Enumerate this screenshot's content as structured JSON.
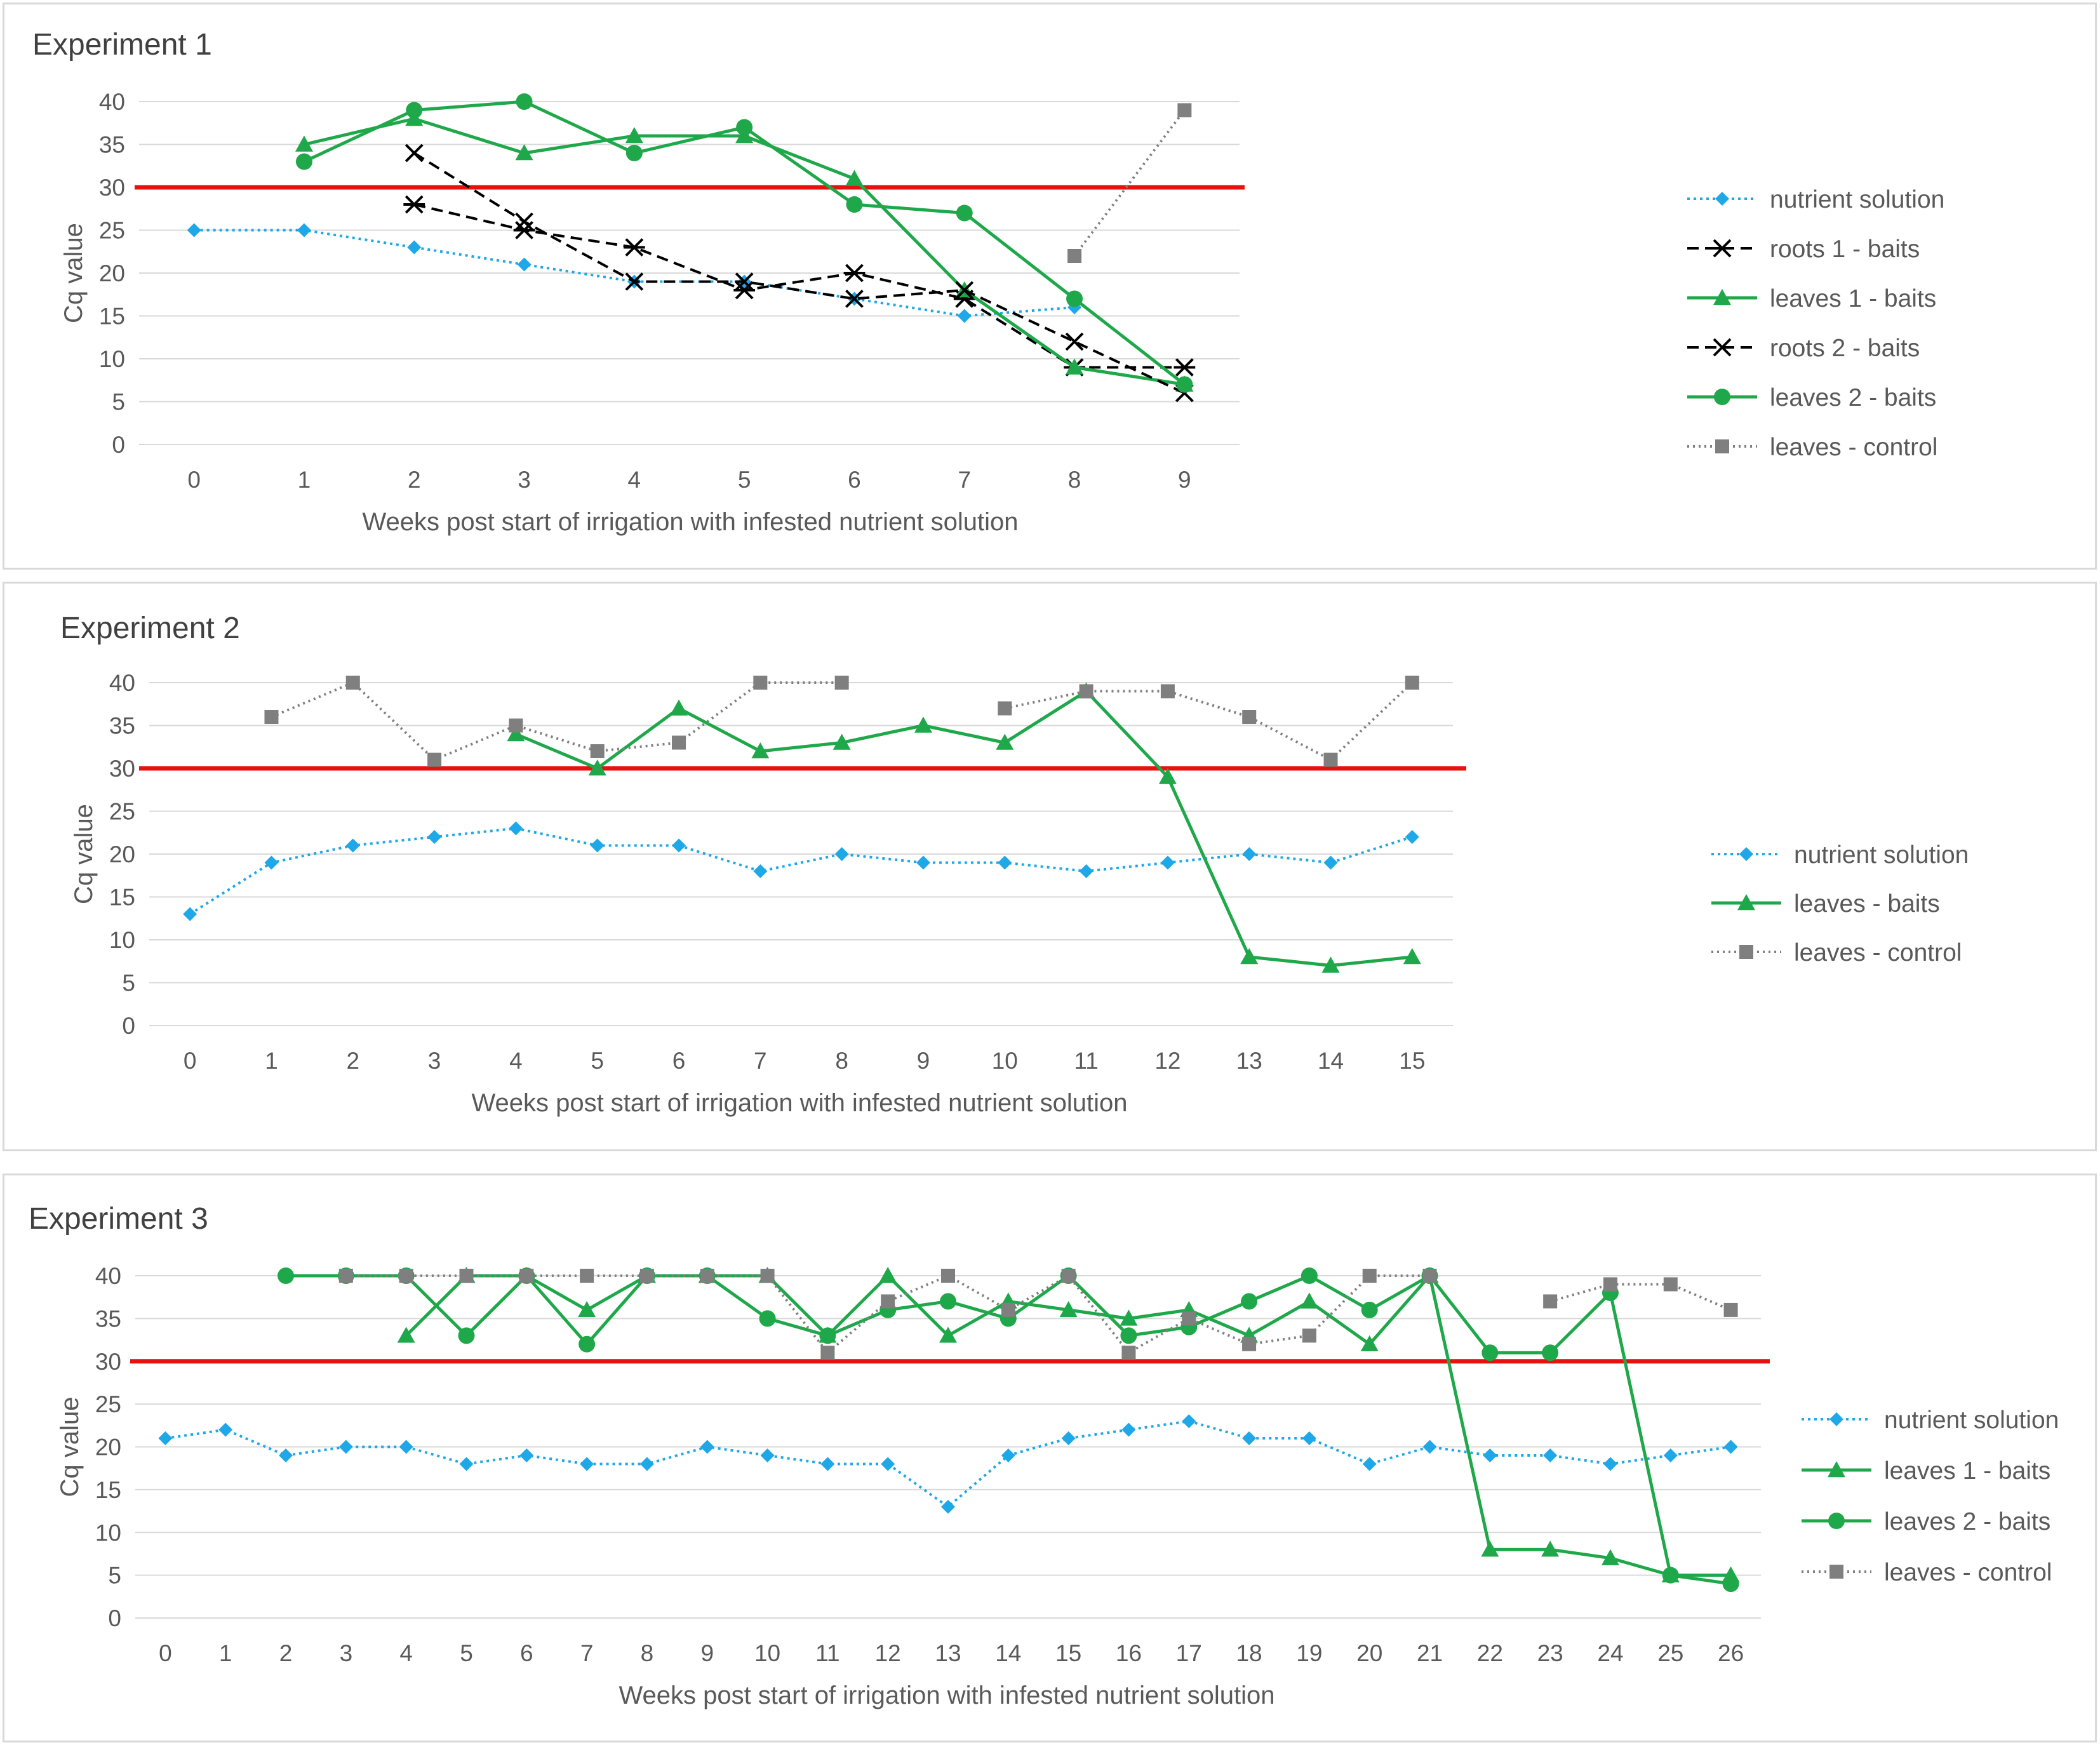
{
  "chart_data": [
    {
      "type": "line",
      "title": "Experiment 1",
      "xlabel": "Weeks post start of irrigation with infested nutrient solution",
      "ylabel": "Cq value",
      "ylim": [
        0,
        40
      ],
      "yticks": [
        0,
        5,
        10,
        15,
        20,
        25,
        30,
        35,
        40
      ],
      "x": [
        0,
        1,
        2,
        3,
        4,
        5,
        6,
        7,
        8,
        9
      ],
      "threshold": 30,
      "grid": true,
      "legend_position": "right",
      "series": [
        {
          "name": "nutrient solution",
          "style": "nutrient",
          "values": [
            25,
            25,
            23,
            21,
            19,
            19,
            17,
            15,
            16,
            null
          ]
        },
        {
          "name": "roots 1 - baits",
          "style": "rootsStar",
          "values": [
            null,
            null,
            28,
            25,
            23,
            18,
            20,
            17,
            9,
            9
          ]
        },
        {
          "name": "leaves 1 - baits",
          "style": "leavesTri",
          "values": [
            null,
            35,
            38,
            34,
            36,
            36,
            31,
            18,
            9,
            7
          ]
        },
        {
          "name": "roots 2 - baits",
          "style": "rootsX",
          "values": [
            null,
            null,
            34,
            26,
            19,
            19,
            17,
            18,
            12,
            6
          ]
        },
        {
          "name": "leaves 2  - baits",
          "style": "leavesCirc",
          "values": [
            null,
            33,
            39,
            40,
            34,
            37,
            28,
            27,
            17,
            7
          ]
        },
        {
          "name": "leaves - control",
          "style": "control",
          "values": [
            null,
            null,
            null,
            null,
            null,
            null,
            null,
            null,
            22,
            39
          ]
        }
      ]
    },
    {
      "type": "line",
      "title": "Experiment 2",
      "xlabel": "Weeks post start of irrigation with infested nutrient solution",
      "ylabel": "Cq value",
      "ylim": [
        0,
        40
      ],
      "yticks": [
        0,
        5,
        10,
        15,
        20,
        25,
        30,
        35,
        40
      ],
      "x": [
        0,
        1,
        2,
        3,
        4,
        5,
        6,
        7,
        8,
        9,
        10,
        11,
        12,
        13,
        14,
        15
      ],
      "threshold": 30,
      "grid": true,
      "legend_position": "right",
      "series": [
        {
          "name": "nutrient solution",
          "style": "nutrient",
          "values": [
            13,
            19,
            21,
            22,
            23,
            21,
            21,
            18,
            20,
            19,
            19,
            18,
            19,
            20,
            19,
            22
          ]
        },
        {
          "name": "leaves - baits",
          "style": "leavesTri",
          "values": [
            null,
            null,
            null,
            null,
            34,
            30,
            37,
            32,
            33,
            35,
            33,
            39,
            29,
            8,
            7,
            8
          ]
        },
        {
          "name": "leaves - control",
          "style": "control",
          "values": [
            null,
            36,
            40,
            31,
            35,
            32,
            33,
            40,
            40,
            null,
            37,
            39,
            39,
            36,
            31,
            40
          ]
        }
      ]
    },
    {
      "type": "line",
      "title": "Experiment 3",
      "xlabel": "Weeks post start of irrigation with infested nutrient solution",
      "ylabel": "Cq value",
      "ylim": [
        0,
        40
      ],
      "yticks": [
        0,
        5,
        10,
        15,
        20,
        25,
        30,
        35,
        40
      ],
      "x": [
        0,
        1,
        2,
        3,
        4,
        5,
        6,
        7,
        8,
        9,
        10,
        11,
        12,
        13,
        14,
        15,
        16,
        17,
        18,
        19,
        20,
        21,
        22,
        23,
        24,
        25,
        26
      ],
      "threshold": 30,
      "grid": true,
      "legend_position": "right",
      "series": [
        {
          "name": "nutrient solution",
          "style": "nutrient",
          "values": [
            21,
            22,
            19,
            20,
            20,
            18,
            19,
            18,
            18,
            20,
            19,
            18,
            18,
            13,
            19,
            21,
            22,
            23,
            21,
            21,
            18,
            20,
            19,
            19,
            18,
            19,
            20
          ]
        },
        {
          "name": "leaves 1  - baits",
          "style": "leavesTri",
          "values": [
            null,
            null,
            null,
            null,
            33,
            40,
            40,
            36,
            40,
            40,
            40,
            33,
            40,
            33,
            37,
            36,
            35,
            36,
            33,
            37,
            32,
            40,
            8,
            8,
            7,
            5,
            5
          ]
        },
        {
          "name": "leaves 2  - baits",
          "style": "leavesCirc",
          "values": [
            null,
            null,
            40,
            40,
            40,
            33,
            40,
            32,
            40,
            40,
            35,
            33,
            36,
            37,
            35,
            40,
            33,
            34,
            37,
            40,
            36,
            40,
            31,
            31,
            38,
            5,
            4
          ]
        },
        {
          "name": "leaves - control",
          "style": "control",
          "values": [
            null,
            null,
            null,
            40,
            40,
            40,
            40,
            40,
            40,
            40,
            40,
            31,
            37,
            40,
            36,
            40,
            31,
            35,
            32,
            33,
            40,
            40,
            null,
            37,
            39,
            39,
            36
          ]
        }
      ]
    }
  ]
}
